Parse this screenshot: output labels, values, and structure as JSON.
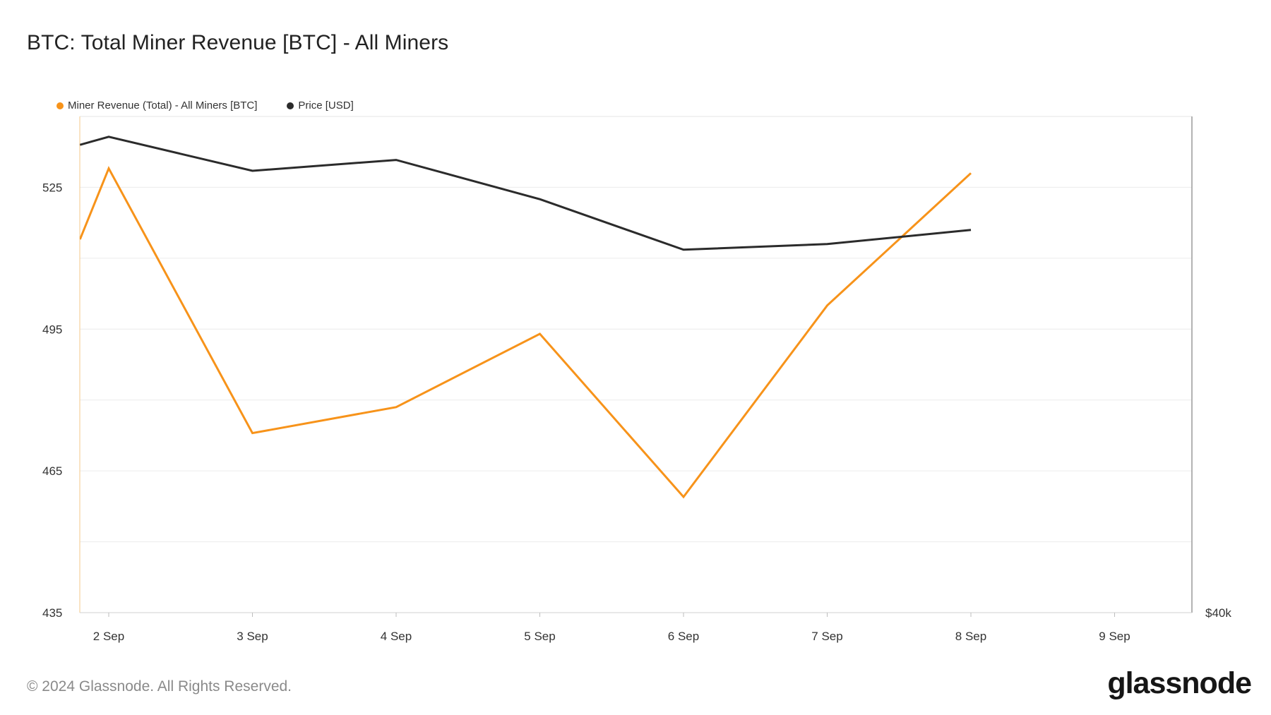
{
  "title": "BTC: Total Miner Revenue [BTC] - All Miners",
  "footer": "© 2024 Glassnode. All Rights Reserved.",
  "logo": "glassnode",
  "chart_data": {
    "type": "line",
    "title": "BTC: Total Miner Revenue [BTC] - All Miners",
    "categories": [
      "2 Sep",
      "3 Sep",
      "4 Sep",
      "5 Sep",
      "6 Sep",
      "7 Sep",
      "8 Sep",
      "9 Sep"
    ],
    "y_left": {
      "ticks": [
        "435",
        "465",
        "495",
        "525"
      ],
      "tick_values": [
        435,
        465,
        495,
        525
      ],
      "range": [
        435,
        540
      ]
    },
    "y_right": {
      "ticks": [
        "$40k"
      ]
    },
    "grid": true,
    "legend": "top-left",
    "series": [
      {
        "name": "Miner Revenue (Total) - All Miners [BTC]",
        "color": "#f7931a",
        "axis": "left",
        "points": [
          {
            "x": 1.8,
            "y": 514
          },
          {
            "x": 2,
            "y": 529
          },
          {
            "x": 3,
            "y": 473
          },
          {
            "x": 4,
            "y": 478.5
          },
          {
            "x": 5,
            "y": 494
          },
          {
            "x": 6,
            "y": 459.5
          },
          {
            "x": 7,
            "y": 500
          },
          {
            "x": 8,
            "y": 528
          }
        ]
      },
      {
        "name": "Price [USD]",
        "color": "#2b2b2b",
        "axis": "left",
        "points": [
          {
            "x": 1.8,
            "y": 534
          },
          {
            "x": 2,
            "y": 535.7
          },
          {
            "x": 3,
            "y": 528.5
          },
          {
            "x": 4,
            "y": 530.8
          },
          {
            "x": 5,
            "y": 522.5
          },
          {
            "x": 6,
            "y": 511.8
          },
          {
            "x": 7,
            "y": 513
          },
          {
            "x": 8,
            "y": 516
          }
        ]
      }
    ]
  }
}
